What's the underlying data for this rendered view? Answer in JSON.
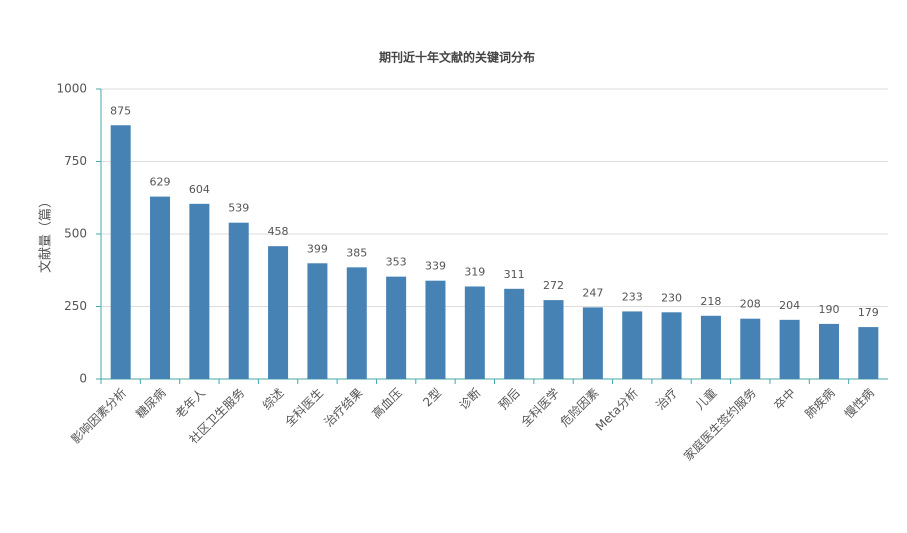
{
  "chart_data": {
    "type": "bar",
    "title": "期刊近十年文献的关键词分布",
    "y_label": "文献量（篇）",
    "categories": [
      "影响因素分析",
      "糖尿病",
      "老年人",
      "社区卫生服务",
      "综述",
      "全科医生",
      "治疗结果",
      "高血压",
      "2型",
      "诊断",
      "预后",
      "全科医学",
      "危险因素",
      "Meta分析",
      "治疗",
      "儿童",
      "家庭医生签约服务",
      "卒中",
      "肺疾病",
      "慢性病"
    ],
    "values": [
      875,
      629,
      604,
      539,
      458,
      399,
      385,
      353,
      339,
      319,
      311,
      272,
      247,
      233,
      230,
      218,
      208,
      204,
      190,
      179
    ],
    "color": "#4682b4",
    "ylim": [
      0,
      1000
    ],
    "yticks": [
      0,
      250,
      500,
      750,
      1000
    ],
    "grid": true
  }
}
